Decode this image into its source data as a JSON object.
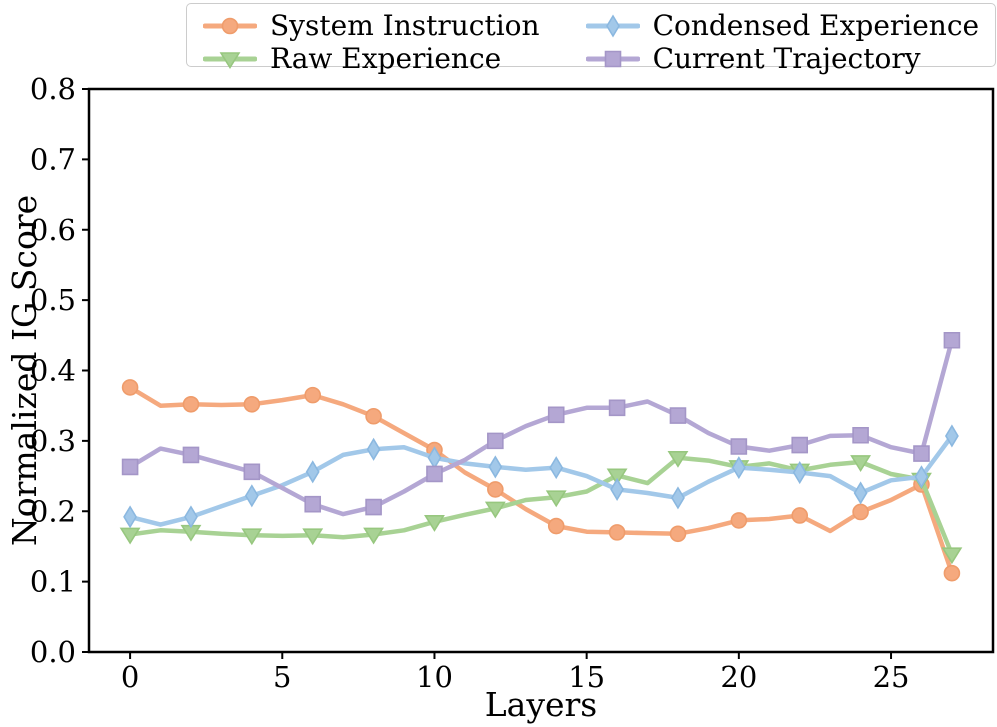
{
  "chart_data": {
    "type": "line",
    "title": "",
    "xlabel": "Layers",
    "ylabel": "Normalized IG Score",
    "x": [
      0,
      1,
      2,
      3,
      4,
      5,
      6,
      7,
      8,
      9,
      10,
      11,
      12,
      13,
      14,
      15,
      16,
      17,
      18,
      19,
      20,
      21,
      22,
      23,
      24,
      25,
      26,
      27
    ],
    "series": [
      {
        "name": "System Instruction",
        "marker": "circle",
        "color": "#F5A97E",
        "marker_edge": "#EF9C6B",
        "values": [
          0.376,
          0.35,
          0.352,
          0.351,
          0.352,
          0.358,
          0.365,
          0.352,
          0.335,
          0.311,
          0.287,
          0.255,
          0.231,
          0.203,
          0.179,
          0.171,
          0.17,
          0.169,
          0.168,
          0.176,
          0.187,
          0.189,
          0.194,
          0.172,
          0.199,
          0.216,
          0.238,
          0.112
        ]
      },
      {
        "name": "Raw Experience",
        "marker": "triangle-down",
        "color": "#A8D294",
        "marker_edge": "#97C77F",
        "values": [
          0.167,
          0.173,
          0.171,
          0.168,
          0.166,
          0.165,
          0.166,
          0.163,
          0.167,
          0.173,
          0.185,
          0.195,
          0.204,
          0.216,
          0.22,
          0.228,
          0.251,
          0.24,
          0.276,
          0.272,
          0.263,
          0.268,
          0.258,
          0.266,
          0.27,
          0.253,
          0.245,
          0.139
        ]
      },
      {
        "name": "Condensed Experience",
        "marker": "diamond",
        "color": "#A2C8E9",
        "marker_edge": "#8BB8E0",
        "values": [
          0.192,
          0.181,
          0.192,
          0.207,
          0.222,
          0.237,
          0.256,
          0.28,
          0.288,
          0.291,
          0.276,
          0.268,
          0.263,
          0.259,
          0.262,
          0.25,
          0.231,
          0.226,
          0.219,
          0.242,
          0.262,
          0.259,
          0.255,
          0.25,
          0.226,
          0.244,
          0.249,
          0.307
        ]
      },
      {
        "name": "Current Trajectory",
        "marker": "square",
        "color": "#B4A7D4",
        "marker_edge": "#A496C7",
        "values": [
          0.263,
          0.289,
          0.28,
          0.268,
          0.256,
          0.233,
          0.21,
          0.196,
          0.206,
          0.228,
          0.253,
          0.273,
          0.3,
          0.321,
          0.337,
          0.347,
          0.347,
          0.356,
          0.336,
          0.311,
          0.292,
          0.286,
          0.294,
          0.307,
          0.308,
          0.291,
          0.282,
          0.443
        ]
      }
    ],
    "xticks": [
      0,
      5,
      10,
      15,
      20,
      25
    ],
    "yticks": [
      0.0,
      0.1,
      0.2,
      0.3,
      0.4,
      0.5,
      0.6,
      0.7,
      0.8
    ],
    "xlim": [
      -1.35,
      28.35
    ],
    "ylim": [
      0.0,
      0.8
    ],
    "marker_every": 2,
    "mark_last_point": true,
    "grid": false,
    "legend_position": "top-center",
    "legend_columns": 2,
    "axis_color": "#000000",
    "background_color": "#ffffff"
  }
}
